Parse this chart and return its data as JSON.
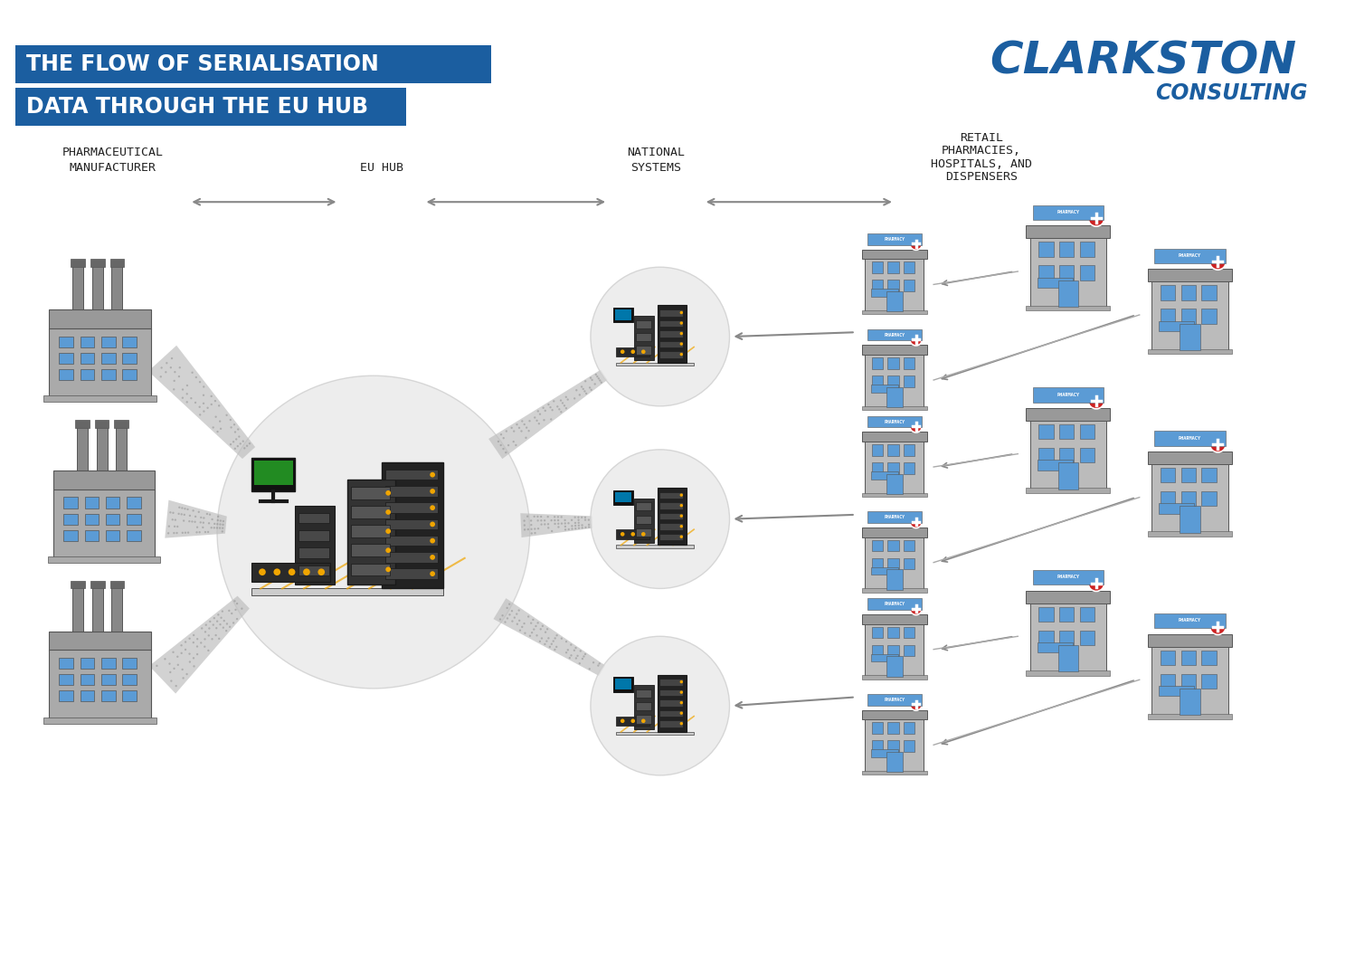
{
  "title_line1": "THE FLOW OF SERIALISATION",
  "title_line2": "DATA THROUGH THE EU HUB",
  "title_bg_color": "#1B5EA0",
  "title_text_color": "#FFFFFF",
  "logo_text1": "CLARKSTON",
  "logo_text2": "CONSULTING",
  "logo_color": "#1B5EA0",
  "bg_color": "#FFFFFF",
  "label_pharma": "PHARMACEUTICAL\nMANUFACTURER",
  "label_hub": "EU HUB",
  "label_national": "NATIONAL\nSYSTEMS",
  "label_retail": "RETAIL\nPHARMACIES,\nHOSPITALS, AND\nDISPENSERS",
  "label_color": "#222222",
  "label_fontsize": 10,
  "arrow_color": "#888888",
  "hub_circle_color": "#E8E8E8",
  "national_circle_color": "#E8E8E8",
  "factory_color": "#AAAAAA",
  "factory_blue": "#5B9BD5",
  "server_dark": "#333333",
  "server_orange": "#F0A500",
  "pharmacy_color": "#AAAAAA",
  "pharmacy_blue": "#5B9BD5",
  "data_flow_color": "#C0C0C0"
}
